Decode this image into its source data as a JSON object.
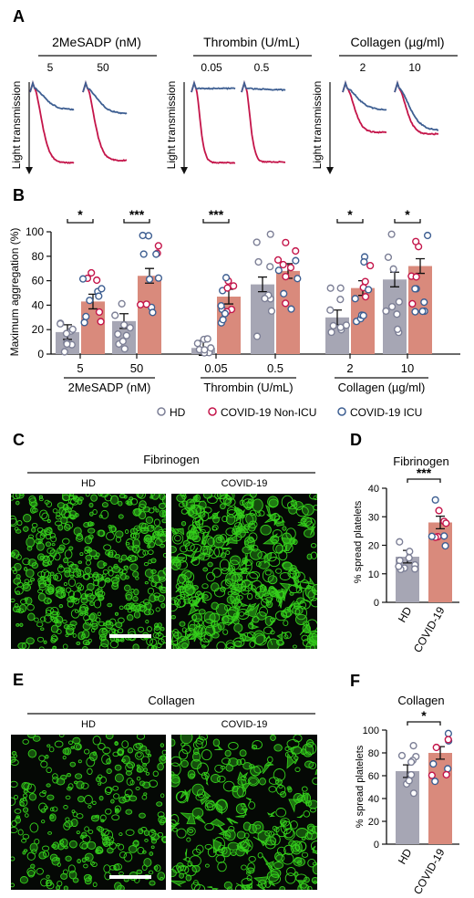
{
  "panels": {
    "A": "A",
    "B": "B",
    "C": "C",
    "D": "D",
    "E": "E",
    "F": "F"
  },
  "colors": {
    "hd": "#7c7f96",
    "noicu": "#c4154a",
    "icu": "#3e5f92",
    "bar_hd": "#a6a6b4",
    "bar_covid": "#d98a7c",
    "green": "#35d01c"
  },
  "panel_a": {
    "y_label": "Light transmission",
    "groups": [
      {
        "title": "2MeSADP (nM)",
        "doses": [
          "5",
          "50"
        ]
      },
      {
        "title": "Thrombin (U/mL)",
        "doses": [
          "0.05",
          "0.5"
        ]
      },
      {
        "title": "Collagen (µg/ml)",
        "doses": [
          "2",
          "10"
        ]
      }
    ]
  },
  "chart_data": [
    {
      "type": "bar",
      "ylabel": "Maximum aggregation (%)",
      "ylim": [
        0,
        100
      ],
      "yticks": [
        "0",
        "20",
        "40",
        "60",
        "80",
        "100"
      ],
      "group_labels": [
        "2MeSADP (nM)",
        "Thrombin (U/mL)",
        "Collagen (µg/ml)"
      ],
      "categories": [
        "5",
        "50",
        "0.05",
        "0.5",
        "2",
        "10"
      ],
      "series": [
        {
          "name": "HD",
          "values": [
            18,
            27,
            5,
            57,
            30,
            61
          ]
        },
        {
          "name": "COVID-19",
          "values": [
            43,
            64,
            47,
            68,
            54,
            72
          ]
        }
      ],
      "significance": [
        "*",
        "***",
        "***",
        "*",
        "*"
      ],
      "legend": [
        "HD",
        "COVID-19 Non-ICU",
        "COVID-19 ICU"
      ]
    },
    {
      "type": "bar",
      "title": "Fibrinogen",
      "ylabel": "% spread platelets",
      "ylim": [
        0,
        40
      ],
      "yticks": [
        "0",
        "10",
        "20",
        "30",
        "40"
      ],
      "categories": [
        "HD",
        "COVID-19"
      ],
      "values": [
        16,
        28
      ],
      "significance": "***"
    },
    {
      "type": "bar",
      "title": "Collagen",
      "ylabel": "% spread platelets",
      "ylim": [
        0,
        100
      ],
      "yticks": [
        "0",
        "20",
        "40",
        "60",
        "80",
        "100"
      ],
      "categories": [
        "HD",
        "COVID-19"
      ],
      "values": [
        64,
        80
      ],
      "significance": "*"
    }
  ],
  "panel_c": {
    "title": "Fibrinogen",
    "left": "HD",
    "right": "COVID-19"
  },
  "panel_e": {
    "title": "Collagen",
    "left": "HD",
    "right": "COVID-19"
  }
}
